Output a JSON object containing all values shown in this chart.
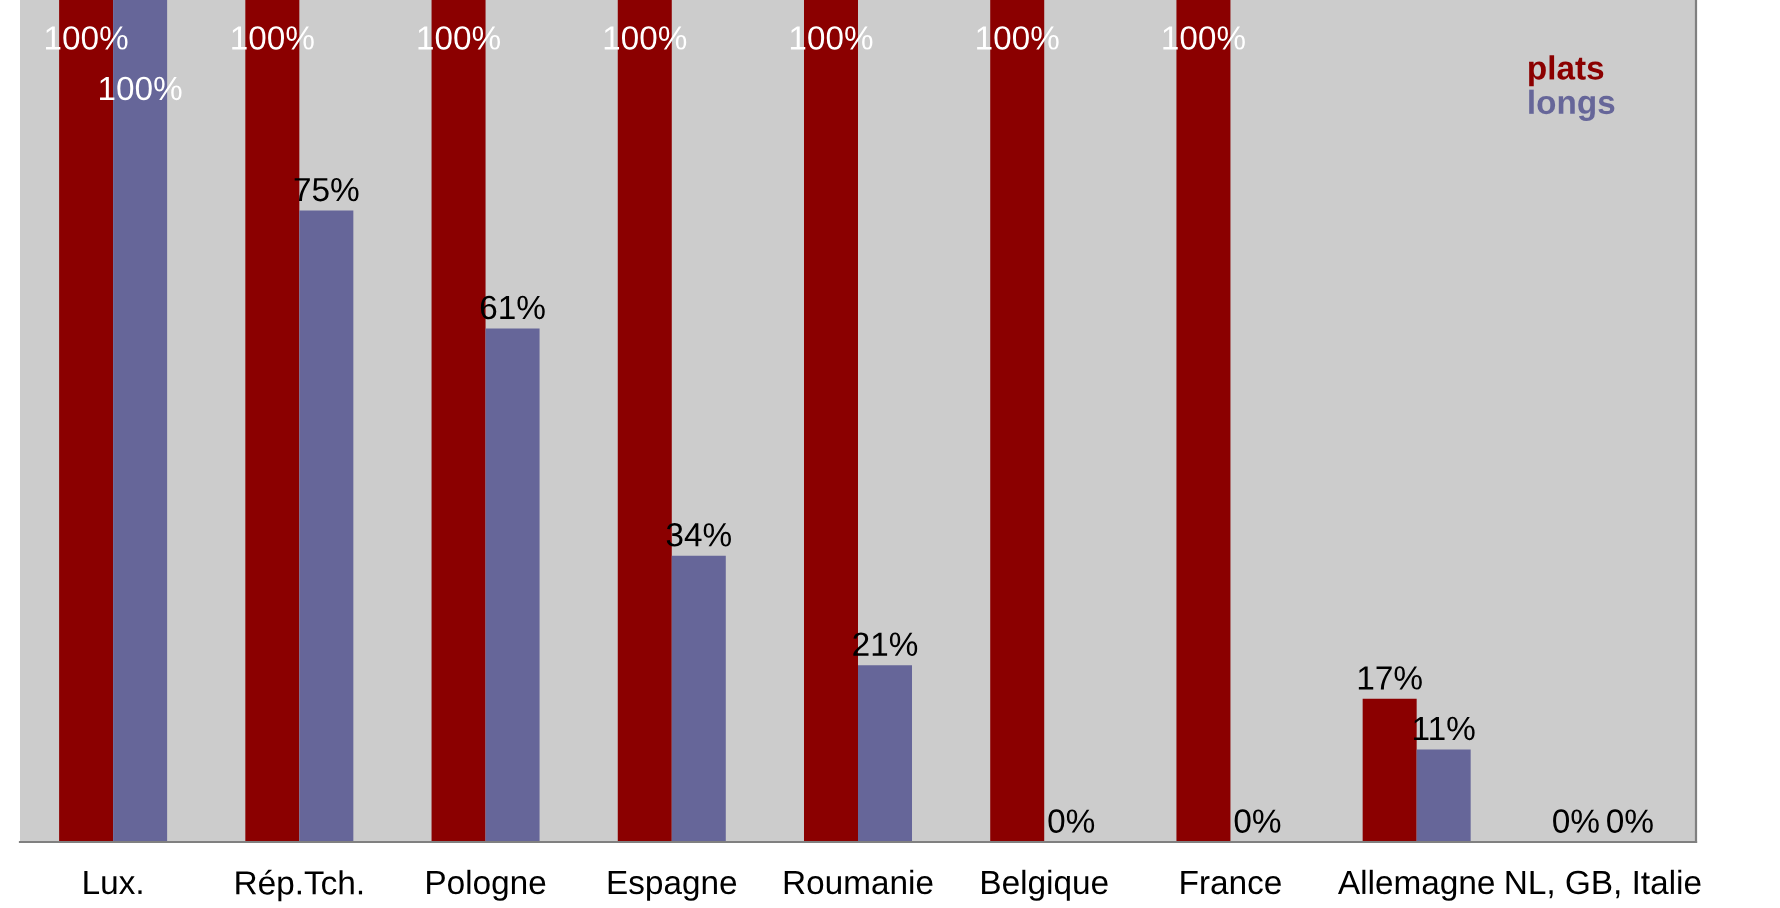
{
  "chart_data": {
    "type": "bar",
    "categories": [
      "Lux.",
      "Rép.Tch.",
      "Pologne",
      "Espagne",
      "Roumanie",
      "Belgique",
      "France",
      "Allemagne",
      "NL, GB, Italie"
    ],
    "series": [
      {
        "name": "plats",
        "color": "#8b0000",
        "values": [
          100,
          100,
          100,
          100,
          100,
          100,
          100,
          17,
          0
        ],
        "value_labels": [
          "100%",
          "100%",
          "100%",
          "100%",
          "100%",
          "100%",
          "100%",
          "17%",
          "0%"
        ]
      },
      {
        "name": "longs",
        "color": "#666699",
        "values": [
          100,
          75,
          61,
          34,
          21,
          0,
          0,
          11,
          0
        ],
        "value_labels": [
          "100%",
          "75%",
          "61%",
          "34%",
          "21%",
          "0%",
          "0%",
          "11%",
          "0%"
        ]
      }
    ],
    "legend": "top right",
    "tick_labels": "x",
    "grid": false
  }
}
